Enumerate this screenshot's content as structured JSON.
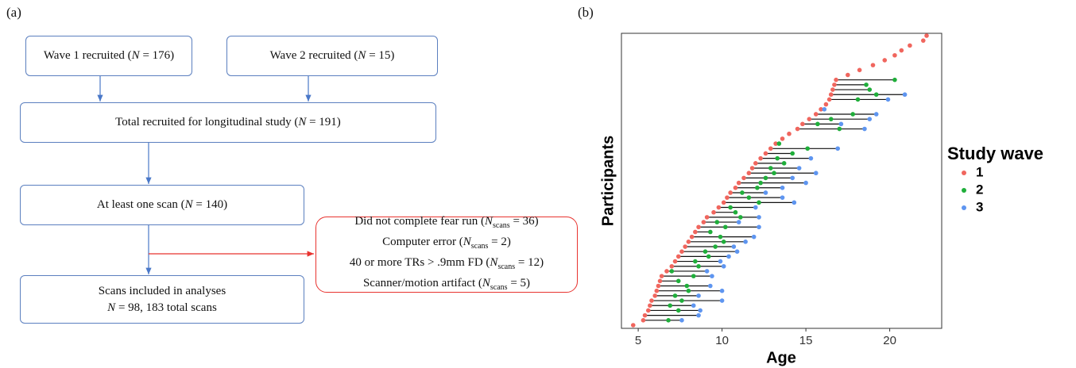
{
  "flowchart": {
    "label": "(a)",
    "wave1": [
      "Wave 1 recruited (",
      "N",
      " = 176)"
    ],
    "wave2": [
      "Wave 2 recruited (",
      "N",
      " = 15)"
    ],
    "total": [
      "Total recruited for longitudinal study (",
      "N",
      " = 191)"
    ],
    "scan": [
      "At least one scan (",
      "N",
      " = 140)"
    ],
    "excluded": [
      [
        "Did not complete fear run (",
        "N",
        "scans",
        " = 36)"
      ],
      [
        "Computer error (",
        "N",
        "scans",
        " = 2)"
      ],
      [
        "40 or more  TRs > .9mm FD (",
        "N",
        "scans",
        " = 12)"
      ],
      [
        "Scanner/motion artifact (",
        "N",
        "scans",
        " = 5)"
      ]
    ],
    "included": {
      "line1": "Scans included in analyses",
      "line2": [
        "N",
        " = 98, 183 total scans"
      ]
    }
  },
  "chart_data": {
    "type": "dumbbell",
    "panel_label": "(b)",
    "x_label": "Age",
    "y_label": "Participants",
    "legend_title": "Study wave",
    "xlim": [
      4.0,
      23.1
    ],
    "xticks": [
      5,
      10,
      15,
      20
    ],
    "categories": [
      null,
      null,
      null,
      null,
      null,
      null,
      null,
      null,
      null,
      null,
      null,
      null,
      null,
      null,
      null,
      null,
      null,
      null,
      null,
      null,
      null,
      null,
      null,
      null,
      null,
      null,
      null,
      null,
      null,
      null,
      null,
      null,
      null,
      null,
      null,
      null,
      null,
      null,
      null,
      null,
      null,
      null,
      null,
      null,
      null,
      null,
      null,
      null,
      null,
      null,
      null,
      null,
      null,
      null,
      null,
      null,
      null,
      null,
      null,
      null
    ],
    "series": [
      {
        "name": "1",
        "color": "#f0665e",
        "values": [
          4.7,
          5.3,
          5.4,
          5.6,
          5.7,
          5.8,
          6.0,
          6.1,
          6.2,
          6.3,
          6.4,
          6.7,
          7.0,
          7.2,
          7.4,
          7.6,
          7.8,
          8.0,
          8.2,
          8.4,
          8.6,
          8.9,
          9.1,
          9.5,
          9.8,
          10.1,
          10.3,
          10.5,
          10.8,
          11.0,
          11.3,
          11.6,
          11.8,
          12.0,
          12.3,
          12.6,
          12.9,
          13.2,
          13.6,
          14.0,
          14.5,
          14.8,
          15.2,
          15.6,
          15.9,
          16.2,
          16.4,
          16.5,
          16.6,
          16.7,
          16.8,
          17.5,
          18.2,
          19.0,
          19.7,
          20.3,
          20.7,
          21.2,
          22.0,
          22.2
        ]
      },
      {
        "name": "2",
        "color": "#1fae3a",
        "values": [
          null,
          6.8,
          null,
          7.4,
          6.9,
          7.6,
          7.2,
          8.0,
          7.9,
          7.4,
          8.3,
          7.0,
          8.6,
          8.4,
          9.2,
          9.0,
          9.6,
          10.1,
          9.9,
          9.3,
          10.2,
          9.7,
          11.1,
          10.8,
          10.5,
          12.2,
          11.6,
          11.2,
          12.1,
          12.3,
          12.6,
          13.1,
          12.9,
          13.7,
          13.3,
          14.2,
          15.1,
          13.4,
          null,
          null,
          17.0,
          15.7,
          16.5,
          17.8,
          null,
          null,
          18.1,
          19.2,
          18.8,
          18.6,
          20.3,
          null,
          null,
          null,
          null,
          null,
          null,
          null,
          null,
          null
        ]
      },
      {
        "name": "3",
        "color": "#5e95f0",
        "values": [
          null,
          7.6,
          8.6,
          8.7,
          8.3,
          10.0,
          8.6,
          10.0,
          9.3,
          null,
          9.4,
          9.1,
          10.1,
          9.9,
          10.4,
          10.9,
          10.7,
          11.4,
          11.9,
          null,
          12.2,
          11.0,
          12.2,
          null,
          12.0,
          14.3,
          13.6,
          12.6,
          13.6,
          15.0,
          14.2,
          15.6,
          14.6,
          null,
          15.3,
          null,
          16.9,
          null,
          null,
          null,
          18.5,
          17.1,
          18.8,
          19.2,
          16.1,
          null,
          19.9,
          20.9,
          null,
          null,
          null,
          null,
          null,
          null,
          null,
          null,
          null,
          null,
          null,
          null
        ]
      }
    ]
  }
}
